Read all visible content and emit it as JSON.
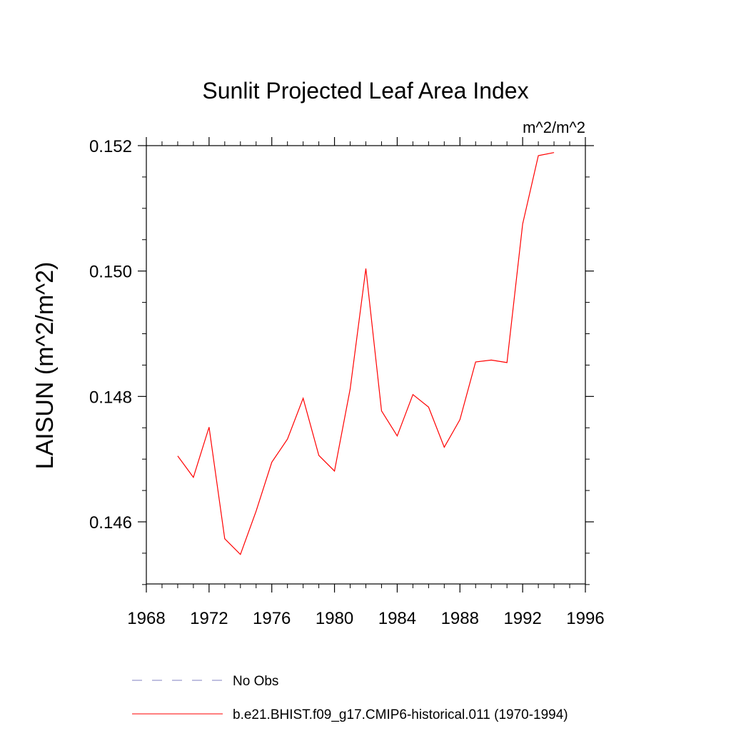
{
  "chart_data": {
    "type": "line",
    "title": "Sunlit Projected Leaf Area Index",
    "units": "m^2/m^2",
    "ylabel": "LAISUN  (m^2/m^2)",
    "xlabel": "",
    "xlim": [
      1968,
      1996
    ],
    "ylim": [
      0.145,
      0.1522
    ],
    "x_ticks": [
      1968,
      1972,
      1976,
      1980,
      1984,
      1988,
      1992,
      1996
    ],
    "x_tick_labels": [
      "1968",
      "1972",
      "1976",
      "1980",
      "1984",
      "1988",
      "1992",
      "1996"
    ],
    "y_ticks": [
      0.146,
      0.148,
      0.15,
      0.152
    ],
    "y_tick_labels": [
      "0.146",
      "0.148",
      "0.150",
      "0.152"
    ],
    "grid": false,
    "legend_position": "bottom",
    "series": [
      {
        "name": "b.e21.BHIST.f09_g17.CMIP6-historical.011 (1970-1994)",
        "color": "#ff0000",
        "style": "solid",
        "x": [
          1970,
          1971,
          1972,
          1973,
          1974,
          1975,
          1976,
          1977,
          1978,
          1979,
          1980,
          1981,
          1982,
          1983,
          1984,
          1985,
          1986,
          1987,
          1988,
          1989,
          1990,
          1991,
          1992,
          1993,
          1994
        ],
        "y": [
          0.14705,
          0.14671,
          0.14751,
          0.14573,
          0.14548,
          0.14617,
          0.14695,
          0.14732,
          0.14797,
          0.14706,
          0.14681,
          0.14812,
          0.15004,
          0.14777,
          0.14737,
          0.14803,
          0.14783,
          0.14719,
          0.14763,
          0.14855,
          0.14858,
          0.14854,
          0.15075,
          0.15184,
          0.15189
        ]
      }
    ],
    "legend": [
      {
        "label": "No Obs",
        "color": "#8080c0",
        "style": "dashed"
      },
      {
        "label": "b.e21.BHIST.f09_g17.CMIP6-historical.011 (1970-1994)",
        "color": "#ff0000",
        "style": "solid"
      }
    ]
  }
}
